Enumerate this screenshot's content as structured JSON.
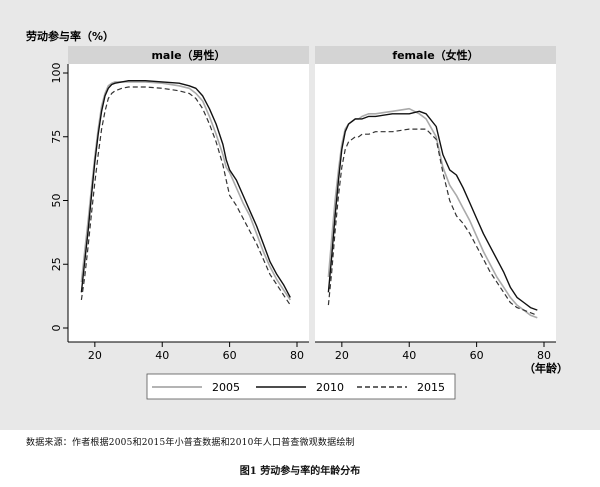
{
  "figure": {
    "ylabel": "劳动参与率（%）",
    "xlabel": "（年龄）",
    "source_note": "数据来源：作者根据2005和2015年小普查数据和2010年人口普查微观数据绘制",
    "caption": "图1  劳动参与率的年龄分布"
  },
  "colors": {
    "outer_bg": "#e8e8e8",
    "plot_bg": "#ffffff",
    "strip_bg": "#d4d4d4",
    "series_2005": "#aaaaaa",
    "series_2010": "#111111",
    "series_2015": "#333333"
  },
  "chart_data": {
    "type": "line",
    "xlim": [
      15,
      80
    ],
    "ylim": [
      0,
      100
    ],
    "x_ticks": [
      20,
      40,
      60,
      80
    ],
    "y_ticks": [
      0,
      25,
      50,
      75,
      100
    ],
    "grid": false,
    "legend_position": "bottom",
    "panels": [
      {
        "title": "male（男性）",
        "series": [
          {
            "name": "2005",
            "style": "solid-gray",
            "x": [
              16,
              17,
              18,
              19,
              20,
              21,
              22,
              23,
              24,
              25,
              26,
              28,
              30,
              35,
              40,
              45,
              48,
              50,
              52,
              54,
              56,
              58,
              59,
              60,
              61,
              62,
              64,
              66,
              68,
              70,
              72,
              74,
              76,
              78
            ],
            "y": [
              18,
              30,
              42,
              55,
              67,
              78,
              87,
              92,
              95,
              96,
              96.5,
              96.5,
              96.5,
              96.5,
              96,
              95,
              94,
              92,
              89,
              83,
              76,
              68,
              63,
              61,
              58,
              55,
              49,
              44,
              37,
              30,
              24,
              19,
              15,
              11
            ]
          },
          {
            "name": "2010",
            "style": "solid-black",
            "x": [
              16,
              17,
              18,
              19,
              20,
              21,
              22,
              23,
              24,
              25,
              26,
              28,
              30,
              35,
              40,
              45,
              48,
              50,
              52,
              54,
              56,
              58,
              59,
              60,
              61,
              62,
              64,
              66,
              68,
              70,
              72,
              74,
              76,
              78
            ],
            "y": [
              14,
              26,
              38,
              52,
              65,
              76,
              85,
              91,
              94,
              95.5,
              96,
              96.5,
              97,
              97,
              96.5,
              96,
              95,
              94,
              91,
              86,
              80,
              72,
              66,
              62,
              60,
              58,
              52,
              46,
              40,
              33,
              26,
              21,
              17,
              12
            ]
          },
          {
            "name": "2015",
            "style": "dashed",
            "x": [
              16,
              17,
              18,
              19,
              20,
              21,
              22,
              23,
              24,
              25,
              26,
              28,
              30,
              35,
              40,
              45,
              48,
              50,
              52,
              54,
              56,
              58,
              59,
              60,
              61,
              62,
              64,
              66,
              68,
              70,
              72,
              74,
              76,
              78
            ],
            "y": [
              11,
              20,
              32,
              45,
              57,
              68,
              78,
              85,
              90,
              92,
              93,
              94,
              94.5,
              94.5,
              94,
              93,
              92,
              90,
              86,
              80,
              73,
              64,
              58,
              52,
              50,
              48,
              43,
              38,
              33,
              27,
              21,
              17,
              13,
              9
            ]
          }
        ]
      },
      {
        "title": "female（女性）",
        "series": [
          {
            "name": "2005",
            "style": "solid-gray",
            "x": [
              16,
              17,
              18,
              19,
              20,
              21,
              22,
              23,
              24,
              25,
              26,
              28,
              30,
              35,
              40,
              43,
              45,
              48,
              50,
              52,
              54,
              56,
              58,
              60,
              62,
              64,
              66,
              68,
              70,
              72,
              74,
              76,
              78
            ],
            "y": [
              20,
              35,
              50,
              62,
              72,
              78,
              80,
              81,
              82,
              82,
              83,
              84,
              84,
              85,
              86,
              84,
              82,
              75,
              63,
              56,
              52,
              47,
              42,
              36,
              30,
              25,
              20,
              16,
              12,
              9,
              7,
              5,
              4
            ]
          },
          {
            "name": "2010",
            "style": "solid-black",
            "x": [
              16,
              17,
              18,
              19,
              20,
              21,
              22,
              23,
              24,
              25,
              26,
              28,
              30,
              35,
              40,
              43,
              45,
              48,
              50,
              52,
              54,
              56,
              58,
              60,
              62,
              64,
              66,
              68,
              70,
              72,
              74,
              76,
              78
            ],
            "y": [
              14,
              28,
              44,
              58,
              70,
              77,
              80,
              81,
              82,
              82,
              82,
              83,
              83,
              84,
              84,
              85,
              84,
              79,
              68,
              62,
              60,
              55,
              49,
              43,
              37,
              32,
              27,
              22,
              16,
              12,
              10,
              8,
              7
            ]
          },
          {
            "name": "2015",
            "style": "dashed",
            "x": [
              16,
              17,
              18,
              19,
              20,
              21,
              22,
              23,
              24,
              25,
              26,
              28,
              30,
              35,
              40,
              43,
              45,
              48,
              50,
              52,
              54,
              56,
              58,
              60,
              62,
              64,
              66,
              68,
              70,
              72,
              74,
              76,
              78
            ],
            "y": [
              9,
              22,
              38,
              52,
              63,
              70,
              73,
              74,
              75,
              75,
              76,
              76,
              77,
              77,
              78,
              78,
              78,
              74,
              61,
              50,
              44,
              41,
              37,
              32,
              27,
              22,
              18,
              14,
              10,
              8,
              7,
              6,
              5
            ]
          }
        ]
      }
    ]
  }
}
